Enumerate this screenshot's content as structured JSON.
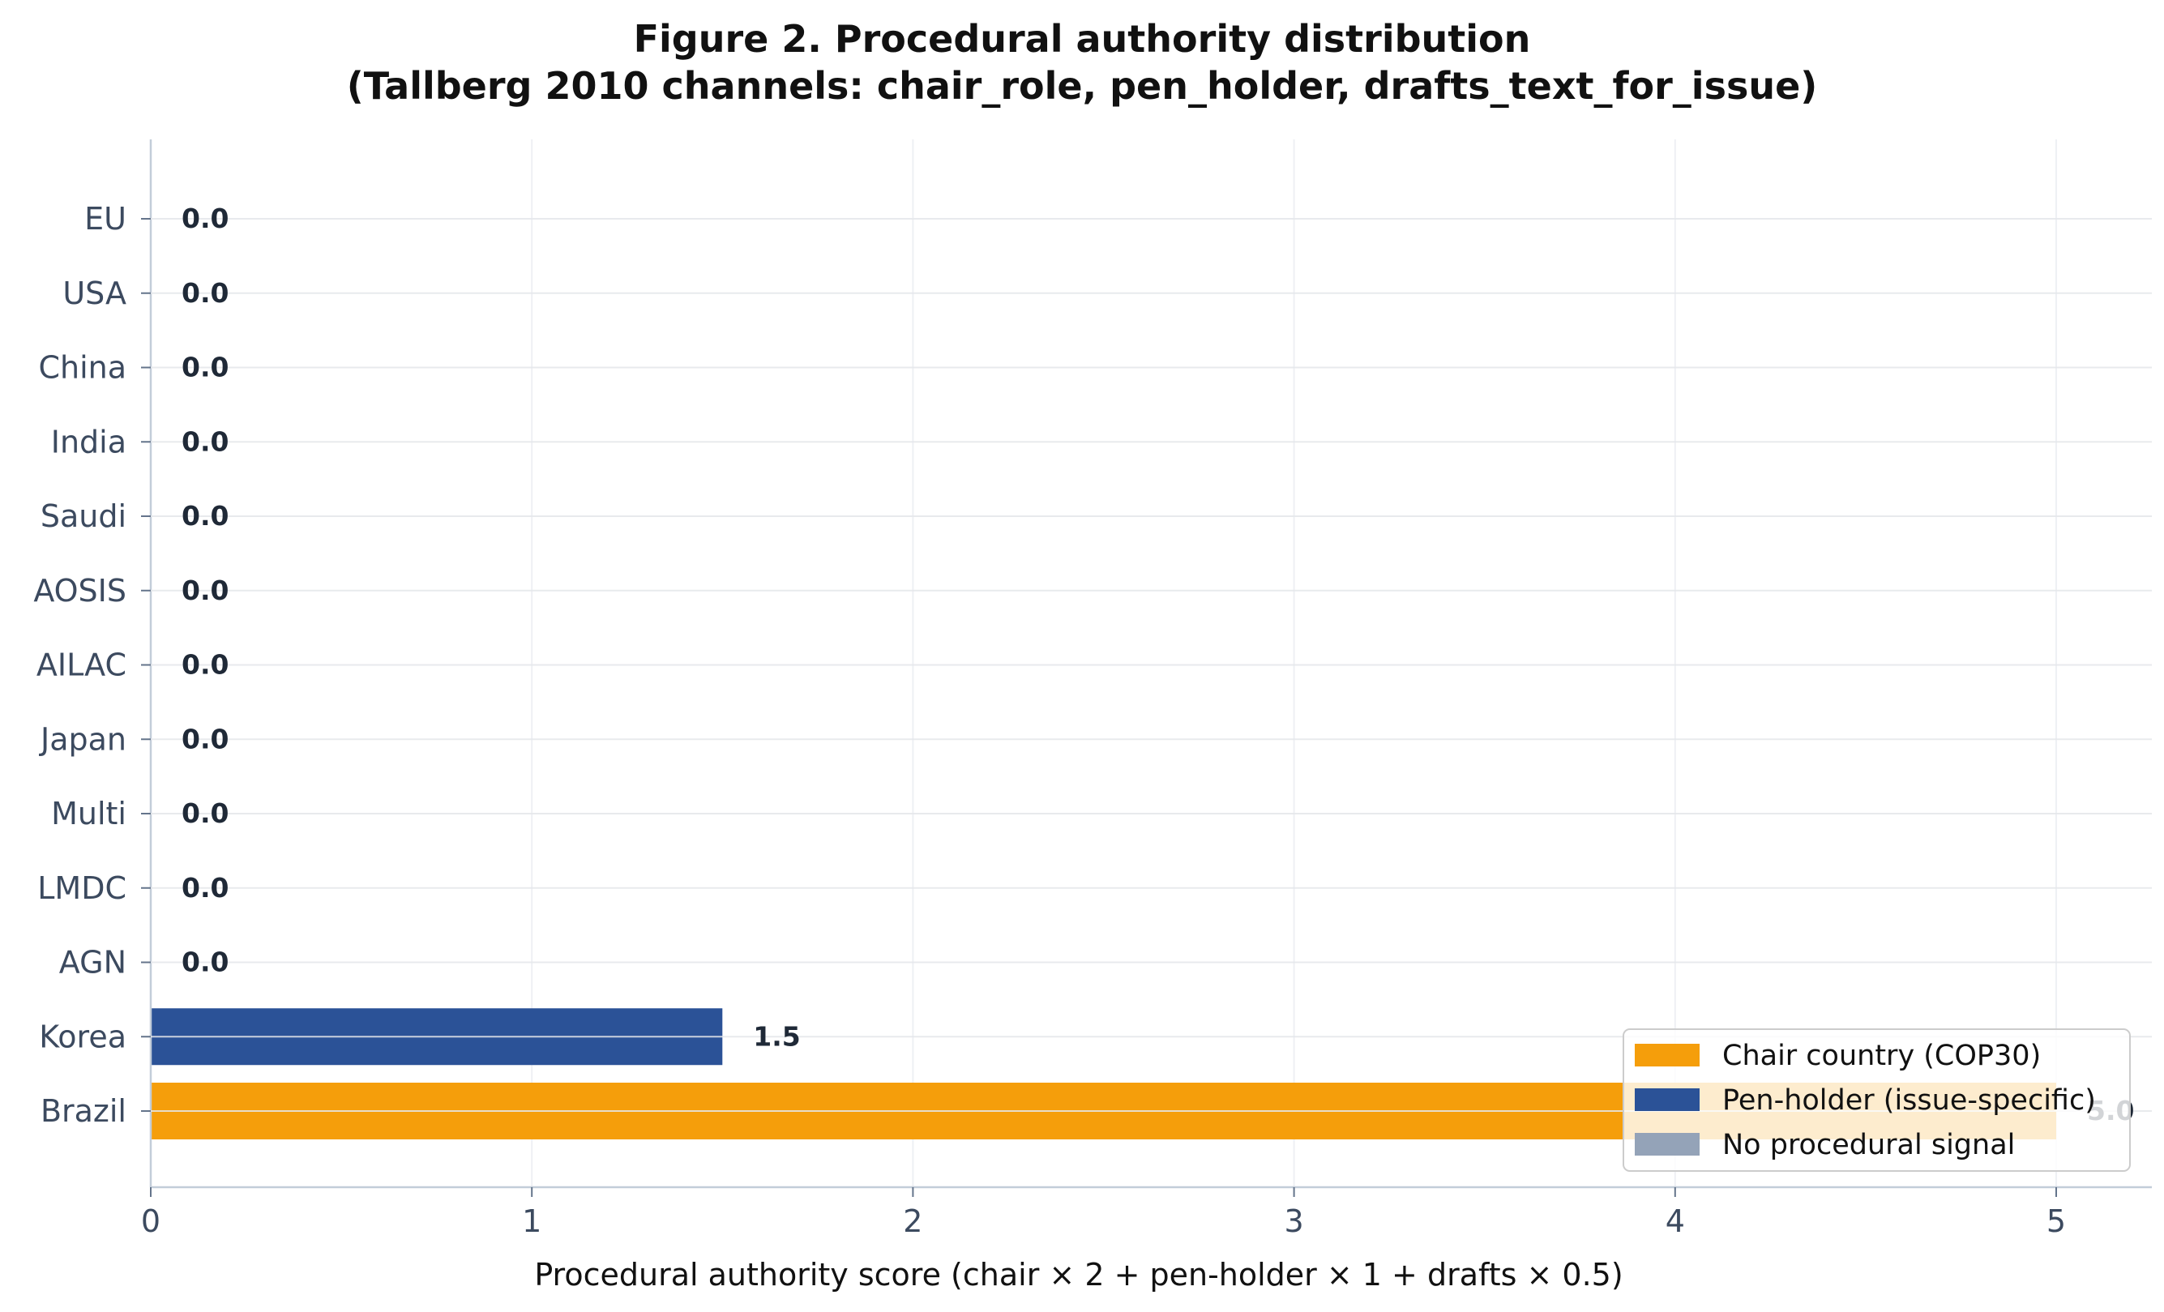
{
  "chart_data": {
    "type": "bar",
    "orientation": "horizontal",
    "title": "Figure 2. Procedural authority distribution",
    "subtitle": "(Tallberg 2010 channels: chair_role, pen_holder, drafts_text_for_issue)",
    "xlabel": "Procedural authority score (chair × 2 + pen-holder × 1 + drafts × 0.5)",
    "ylabel": "",
    "xlim": [
      0,
      5.25
    ],
    "xticks": [
      "0",
      "1",
      "2",
      "3",
      "4",
      "5"
    ],
    "grid": true,
    "legend_position": "lower-right",
    "categories": [
      "EU",
      "USA",
      "China",
      "India",
      "Saudi",
      "AOSIS",
      "AILAC",
      "Japan",
      "Multi",
      "LMDC",
      "AGN",
      "Korea",
      "Brazil"
    ],
    "values": [
      0,
      0,
      0,
      0,
      0,
      0,
      0,
      0,
      0,
      0,
      0,
      1.5,
      5.0
    ],
    "value_labels": [
      "0.0",
      "0.0",
      "0.0",
      "0.0",
      "0.0",
      "0.0",
      "0.0",
      "0.0",
      "0.0",
      "0.0",
      "0.0",
      "1.5",
      "5.0"
    ],
    "bar_groups": [
      "none",
      "none",
      "none",
      "none",
      "none",
      "none",
      "none",
      "none",
      "none",
      "none",
      "none",
      "pen",
      "chair"
    ],
    "legend": [
      {
        "key": "chair",
        "label": "Chair country (COP30)",
        "color": "#f59e0b"
      },
      {
        "key": "pen",
        "label": "Pen-holder (issue-specific)",
        "color": "#2b5297"
      },
      {
        "key": "none",
        "label": "No procedural signal",
        "color": "#94a3b8"
      }
    ]
  }
}
